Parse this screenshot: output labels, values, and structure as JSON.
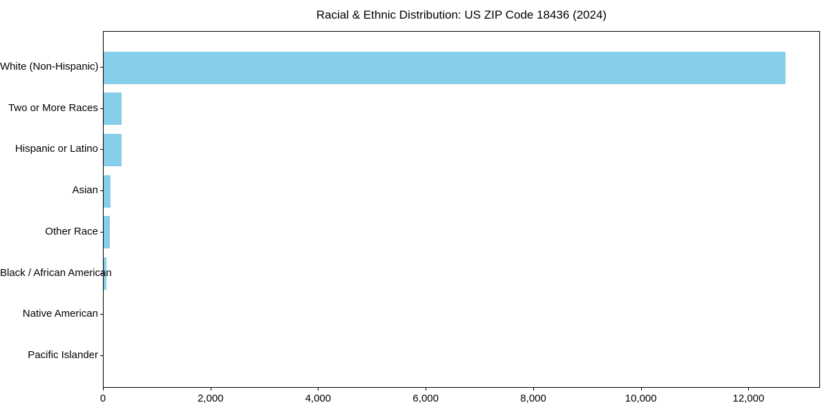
{
  "chart_data": {
    "type": "bar",
    "orientation": "horizontal",
    "title": "Racial & Ethnic Distribution: US ZIP Code 18436 (2024)",
    "xlabel": "",
    "ylabel": "",
    "categories": [
      "White (Non-Hispanic)",
      "Two or More Races",
      "Hispanic or Latino",
      "Asian",
      "Other Race",
      "Black / African American",
      "Native American",
      "Pacific Islander"
    ],
    "values": [
      12670,
      340,
      330,
      130,
      115,
      55,
      0,
      0
    ],
    "xlim": [
      0,
      13330
    ],
    "x_tick_values": [
      0,
      2000,
      4000,
      6000,
      8000,
      10000,
      12000
    ],
    "x_tick_labels": [
      "0",
      "2,000",
      "4,000",
      "6,000",
      "8,000",
      "10,000",
      "12,000"
    ],
    "bar_color": "#87CEEB",
    "axis_color": "#000000",
    "text_color": "#000000",
    "background_color": "#ffffff",
    "grid": false,
    "legend": false
  }
}
